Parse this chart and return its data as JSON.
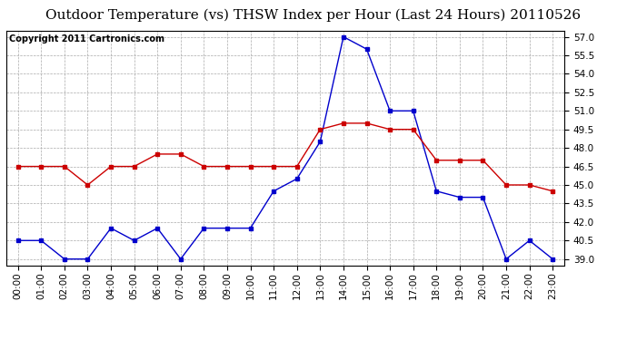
{
  "title": "Outdoor Temperature (vs) THSW Index per Hour (Last 24 Hours) 20110526",
  "copyright": "Copyright 2011 Cartronics.com",
  "hours": [
    "00:00",
    "01:00",
    "02:00",
    "03:00",
    "04:00",
    "05:00",
    "06:00",
    "07:00",
    "08:00",
    "09:00",
    "10:00",
    "11:00",
    "12:00",
    "13:00",
    "14:00",
    "15:00",
    "16:00",
    "17:00",
    "18:00",
    "19:00",
    "20:00",
    "21:00",
    "22:00",
    "23:00"
  ],
  "blue_data": [
    40.5,
    40.5,
    39.0,
    39.0,
    41.5,
    40.5,
    41.5,
    39.0,
    41.5,
    41.5,
    41.5,
    44.5,
    45.5,
    48.5,
    57.0,
    56.0,
    51.0,
    51.0,
    44.5,
    44.0,
    44.0,
    39.0,
    40.5,
    39.0
  ],
  "red_data": [
    46.5,
    46.5,
    46.5,
    45.0,
    46.5,
    46.5,
    47.5,
    47.5,
    46.5,
    46.5,
    46.5,
    46.5,
    46.5,
    49.5,
    50.0,
    50.0,
    49.5,
    49.5,
    47.0,
    47.0,
    47.0,
    45.0,
    45.0,
    44.5
  ],
  "blue_color": "#0000cc",
  "red_color": "#cc0000",
  "plot_bg_color": "#ffffff",
  "grid_color": "#aaaaaa",
  "outer_bg": "#ffffff",
  "ylim_min": 38.5,
  "ylim_max": 57.5,
  "ytick_min": 39.0,
  "ytick_max": 57.0,
  "ytick_step": 1.5,
  "title_fontsize": 11,
  "copyright_fontsize": 7,
  "tick_fontsize": 7.5
}
